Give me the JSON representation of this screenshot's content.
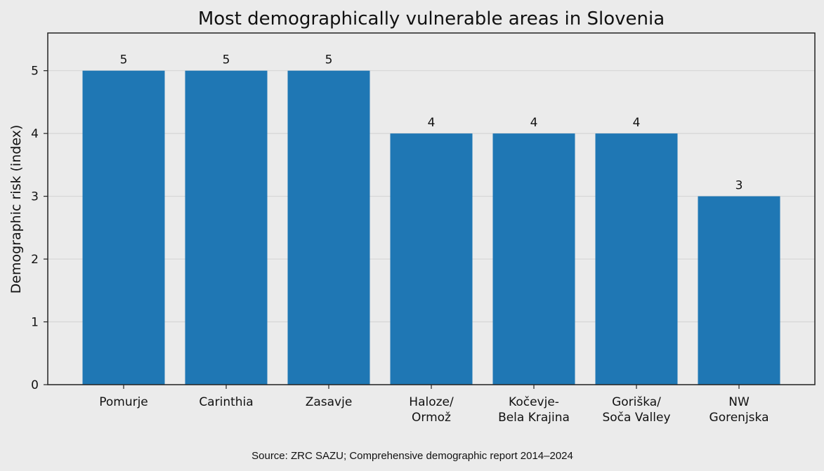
{
  "chart_data": {
    "type": "bar",
    "title": "Most demographically vulnerable areas in Slovenia",
    "xlabel": "",
    "ylabel": "Demographic risk (index)",
    "categories": [
      [
        "Pomurje"
      ],
      [
        "Carinthia"
      ],
      [
        "Zasavje"
      ],
      [
        "Haloze/",
        "Ormož"
      ],
      [
        "Kočevje-",
        "Bela Krajina"
      ],
      [
        "Goriška/",
        "Soča Valley"
      ],
      [
        "NW",
        "Gorenjska"
      ]
    ],
    "values": [
      5,
      5,
      5,
      4,
      4,
      4,
      3
    ],
    "ylim": [
      0,
      5.6
    ],
    "yticks": [
      0,
      1,
      2,
      3,
      4,
      5
    ],
    "grid": "horizontal",
    "bar_color": "#1f77b4",
    "background_color": "#ebebeb",
    "source": "Source: ZRC SAZU; Comprehensive demographic report 2014–2024"
  }
}
